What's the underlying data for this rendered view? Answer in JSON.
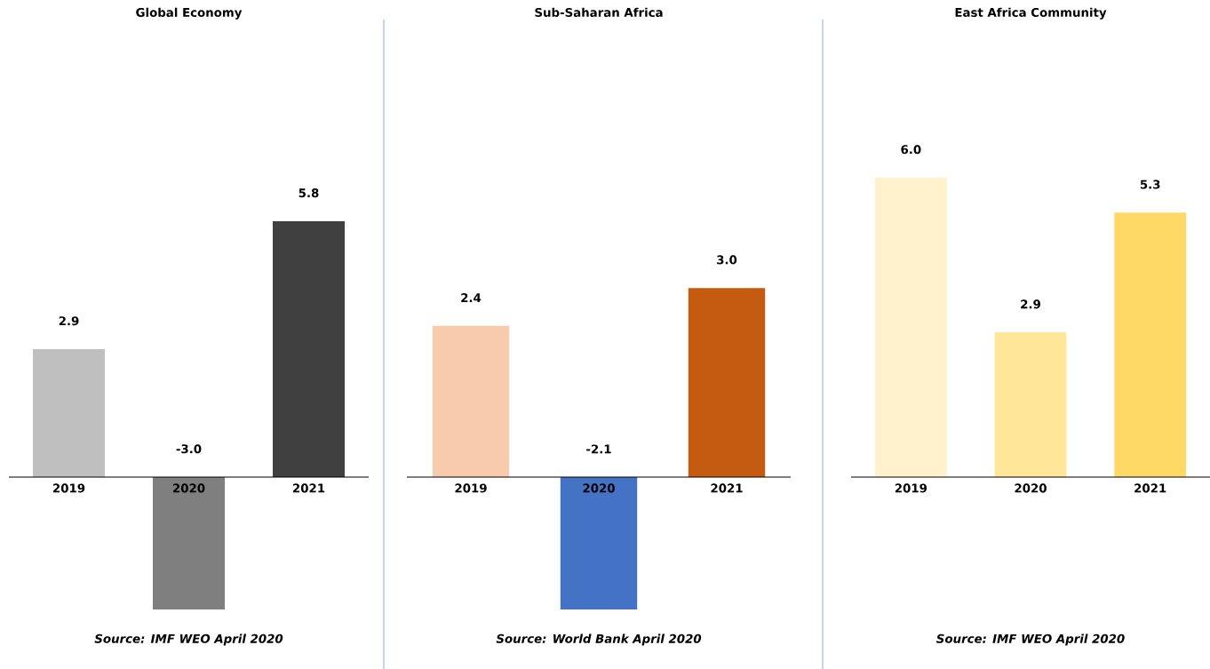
{
  "chart_data": [
    {
      "type": "bar",
      "title": "Global Economy",
      "categories": [
        "2019",
        "2020",
        "2021"
      ],
      "values": [
        2.9,
        -3.0,
        5.8
      ],
      "colors": [
        "#bfbfbf",
        "#7f7f7f",
        "#404040"
      ],
      "value_labels": [
        "2.9",
        "-3.0",
        "5.8"
      ],
      "annotations": [
        "Source: IMF WEO April 2020"
      ]
    },
    {
      "type": "bar",
      "title": "Sub-Saharan Africa",
      "categories": [
        "2019",
        "2020",
        "2021"
      ],
      "values": [
        2.4,
        -2.1,
        3.0
      ],
      "colors": [
        "#f8cbad",
        "#4472c4",
        "#c55a11"
      ],
      "value_labels": [
        "2.4",
        "-2.1",
        "3.0"
      ],
      "annotations": [
        "Source: World Bank April 2020"
      ]
    },
    {
      "type": "bar",
      "title": "East Africa Community",
      "categories": [
        "2019",
        "2020",
        "2021"
      ],
      "values": [
        6.0,
        2.9,
        5.3
      ],
      "colors": [
        "#fff2cc",
        "#ffe699",
        "#ffd966"
      ],
      "value_labels": [
        "6.0",
        "2.9",
        "5.3"
      ],
      "annotations": [
        "Source: IMF WEO April 2020"
      ]
    }
  ]
}
